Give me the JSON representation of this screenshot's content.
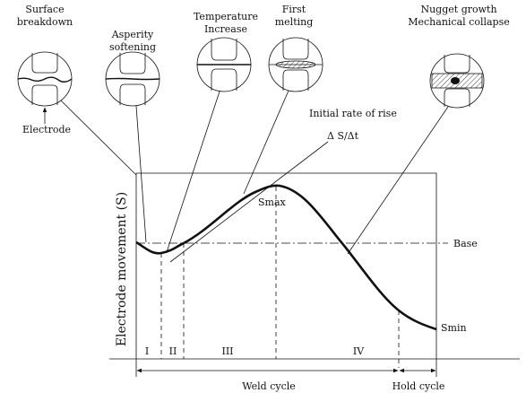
{
  "stages": [
    {
      "label": [
        "Surface",
        "breakdown"
      ]
    },
    {
      "label": [
        "Asperity",
        "softening"
      ]
    },
    {
      "label": [
        "Temperature",
        "Increase"
      ]
    },
    {
      "label": [
        "First",
        "melting"
      ]
    },
    {
      "label": [
        "Nugget growth",
        "Mechanical collapse"
      ]
    }
  ],
  "electrode_label": "Electrode",
  "rate_label": "Initial rate of rise",
  "slope_label": "Δ S/Δt",
  "y_axis_label": "Electrode movement (S)",
  "smax_label": "Smax",
  "base_label": "Base",
  "smin_label": "Smin",
  "regions": [
    "I",
    "II",
    "III",
    "IV"
  ],
  "weld_cycle_label": "Weld cycle",
  "hold_cycle_label": "Hold cycle"
}
